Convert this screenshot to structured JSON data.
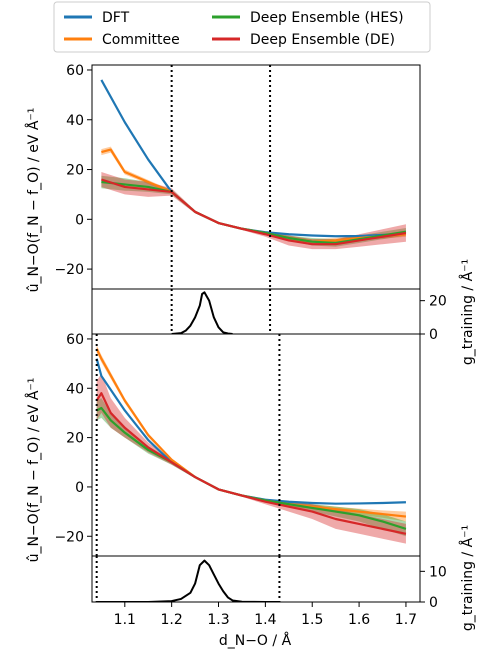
{
  "colors": {
    "dft": "#1f77b4",
    "committee": "#ff7f0e",
    "hes": "#2ca02c",
    "de": "#d62728",
    "density": "#000000"
  },
  "legend": {
    "entries": [
      "DFT",
      "Committee",
      "Deep Ensemble (HES)",
      "Deep Ensemble (DE)"
    ],
    "placement": "top-center, above plots, 2 columns"
  },
  "labels": {
    "ylabel_main": "û_N−O(f_N − f_O) / eV Å⁻¹",
    "ylabel_density": "g_training / Å⁻¹",
    "xlabel": "d_N−O / Å"
  },
  "chart_data": [
    {
      "type": "line",
      "panel": "top-main",
      "xlim": [
        1.03,
        1.73
      ],
      "ylim": [
        -28,
        62
      ],
      "yticks": [
        60,
        40,
        20,
        0,
        -20
      ],
      "vlines": [
        1.2,
        1.41
      ],
      "series": [
        {
          "name": "DFT",
          "x": [
            1.05,
            1.1,
            1.15,
            1.2,
            1.25,
            1.3,
            1.35,
            1.4,
            1.45,
            1.5,
            1.55,
            1.6,
            1.65,
            1.7
          ],
          "y": [
            56,
            39,
            24,
            11,
            3,
            -1.5,
            -3.8,
            -5.2,
            -6.0,
            -6.5,
            -6.8,
            -6.7,
            -6.3,
            -5.8
          ]
        },
        {
          "name": "Committee",
          "x": [
            1.05,
            1.07,
            1.1,
            1.15,
            1.2,
            1.25,
            1.3,
            1.35,
            1.4,
            1.45,
            1.5,
            1.55,
            1.6,
            1.65,
            1.7
          ],
          "y": [
            27,
            28,
            19,
            15,
            11,
            3,
            -1.5,
            -3.8,
            -5.5,
            -7.5,
            -9,
            -8.5,
            -7.5,
            -6.8,
            -6
          ],
          "band": [
            1.2,
            1.2,
            1,
            0.8,
            0.6,
            0.4,
            0.4,
            0.4,
            0.5,
            0.7,
            1,
            1,
            1,
            1,
            1
          ]
        },
        {
          "name": "Deep Ensemble (HES)",
          "x": [
            1.05,
            1.1,
            1.15,
            1.2,
            1.25,
            1.3,
            1.35,
            1.4,
            1.45,
            1.5,
            1.55,
            1.6,
            1.65,
            1.7
          ],
          "y": [
            15,
            14,
            13,
            11,
            3,
            -1.5,
            -3.8,
            -5.5,
            -7.5,
            -9,
            -9.5,
            -8,
            -6.5,
            -5
          ],
          "band": [
            2.5,
            2.5,
            2,
            1,
            0.5,
            0.4,
            0.4,
            0.6,
            1,
            1.5,
            1.5,
            1.5,
            1.5,
            1.5
          ]
        },
        {
          "name": "Deep Ensemble (DE)",
          "x": [
            1.05,
            1.1,
            1.15,
            1.2,
            1.25,
            1.3,
            1.35,
            1.4,
            1.45,
            1.5,
            1.55,
            1.6,
            1.65,
            1.7
          ],
          "y": [
            16,
            13,
            12,
            11,
            3,
            -1.5,
            -3.8,
            -6,
            -8.5,
            -10,
            -10,
            -8.5,
            -7,
            -5.5
          ],
          "band": [
            3,
            3,
            3,
            1.5,
            0.6,
            0.4,
            0.5,
            1,
            2,
            2,
            2,
            2.5,
            3,
            3.5
          ]
        }
      ]
    },
    {
      "type": "line",
      "panel": "top-density",
      "xlim": [
        1.03,
        1.73
      ],
      "ylim": [
        0,
        27
      ],
      "yticks": [
        20,
        0
      ],
      "vlines": [
        1.2,
        1.41
      ],
      "series": [
        {
          "x": [
            1.2,
            1.22,
            1.23,
            1.24,
            1.25,
            1.26,
            1.265,
            1.27,
            1.28,
            1.29,
            1.3,
            1.31,
            1.32,
            1.33
          ],
          "y": [
            0,
            0.5,
            2,
            5,
            10,
            17,
            24,
            25,
            20,
            10,
            4,
            1,
            0.3,
            0
          ]
        }
      ]
    },
    {
      "type": "line",
      "panel": "bottom-main",
      "xlim": [
        1.03,
        1.73
      ],
      "ylim": [
        -28,
        62
      ],
      "yticks": [
        60,
        40,
        20,
        0,
        -20
      ],
      "vlines": [
        1.04,
        1.43
      ],
      "series": [
        {
          "name": "DFT",
          "x": [
            1.04,
            1.05,
            1.1,
            1.15,
            1.2,
            1.25,
            1.3,
            1.35,
            1.4,
            1.45,
            1.5,
            1.55,
            1.6,
            1.65,
            1.7
          ],
          "y": [
            52,
            45,
            31,
            19,
            10,
            4,
            -1,
            -3.5,
            -5.2,
            -6.0,
            -6.5,
            -6.8,
            -6.7,
            -6.5,
            -6.2
          ]
        },
        {
          "name": "Committee",
          "x": [
            1.04,
            1.05,
            1.1,
            1.15,
            1.2,
            1.25,
            1.3,
            1.35,
            1.4,
            1.45,
            1.5,
            1.55,
            1.6,
            1.65,
            1.7
          ],
          "y": [
            56,
            52,
            35,
            21,
            11,
            4,
            -1,
            -3.5,
            -5.5,
            -7,
            -8,
            -9,
            -10,
            -11,
            -12
          ],
          "band": [
            1.5,
            1.5,
            1,
            0.8,
            0.6,
            0.4,
            0.4,
            0.5,
            0.6,
            0.8,
            1,
            1,
            1.2,
            1.5,
            2
          ]
        },
        {
          "name": "Deep Ensemble (HES)",
          "x": [
            1.04,
            1.05,
            1.07,
            1.1,
            1.15,
            1.2,
            1.25,
            1.3,
            1.35,
            1.4,
            1.45,
            1.5,
            1.55,
            1.6,
            1.65,
            1.7
          ],
          "y": [
            31,
            32,
            27,
            22,
            15,
            10,
            4,
            -1,
            -3.5,
            -5.5,
            -7,
            -8.5,
            -10,
            -11.5,
            -14,
            -17
          ],
          "band": [
            4,
            4,
            3,
            2,
            1.5,
            1,
            0.5,
            0.4,
            0.5,
            0.7,
            1,
            1.5,
            2,
            2.5,
            3,
            3
          ]
        },
        {
          "name": "Deep Ensemble (DE)",
          "x": [
            1.04,
            1.05,
            1.07,
            1.1,
            1.15,
            1.2,
            1.25,
            1.3,
            1.35,
            1.4,
            1.45,
            1.5,
            1.55,
            1.6,
            1.65,
            1.7
          ],
          "y": [
            35,
            38,
            30,
            24,
            16,
            10,
            4,
            -1,
            -3.5,
            -6,
            -8,
            -10,
            -13,
            -15,
            -17,
            -19
          ],
          "band": [
            8,
            8,
            6,
            4,
            2,
            1,
            0.5,
            0.4,
            0.5,
            1,
            2,
            3,
            4,
            4,
            4,
            4
          ]
        }
      ]
    },
    {
      "type": "line",
      "panel": "bottom-density",
      "xlim": [
        1.03,
        1.73
      ],
      "ylim": [
        0,
        15
      ],
      "yticks": [
        10,
        0
      ],
      "vlines": [
        1.04,
        1.43
      ],
      "series": [
        {
          "x": [
            1.04,
            1.15,
            1.2,
            1.22,
            1.24,
            1.25,
            1.26,
            1.27,
            1.28,
            1.29,
            1.3,
            1.31,
            1.32,
            1.33,
            1.35,
            1.4,
            1.43
          ],
          "y": [
            0,
            0,
            0.3,
            1,
            3,
            6,
            12,
            13.5,
            12,
            9,
            6,
            3.5,
            1.5,
            0.5,
            0.1,
            0,
            0
          ]
        }
      ]
    }
  ],
  "xticks": [
    1.1,
    1.2,
    1.3,
    1.4,
    1.5,
    1.6,
    1.7
  ]
}
